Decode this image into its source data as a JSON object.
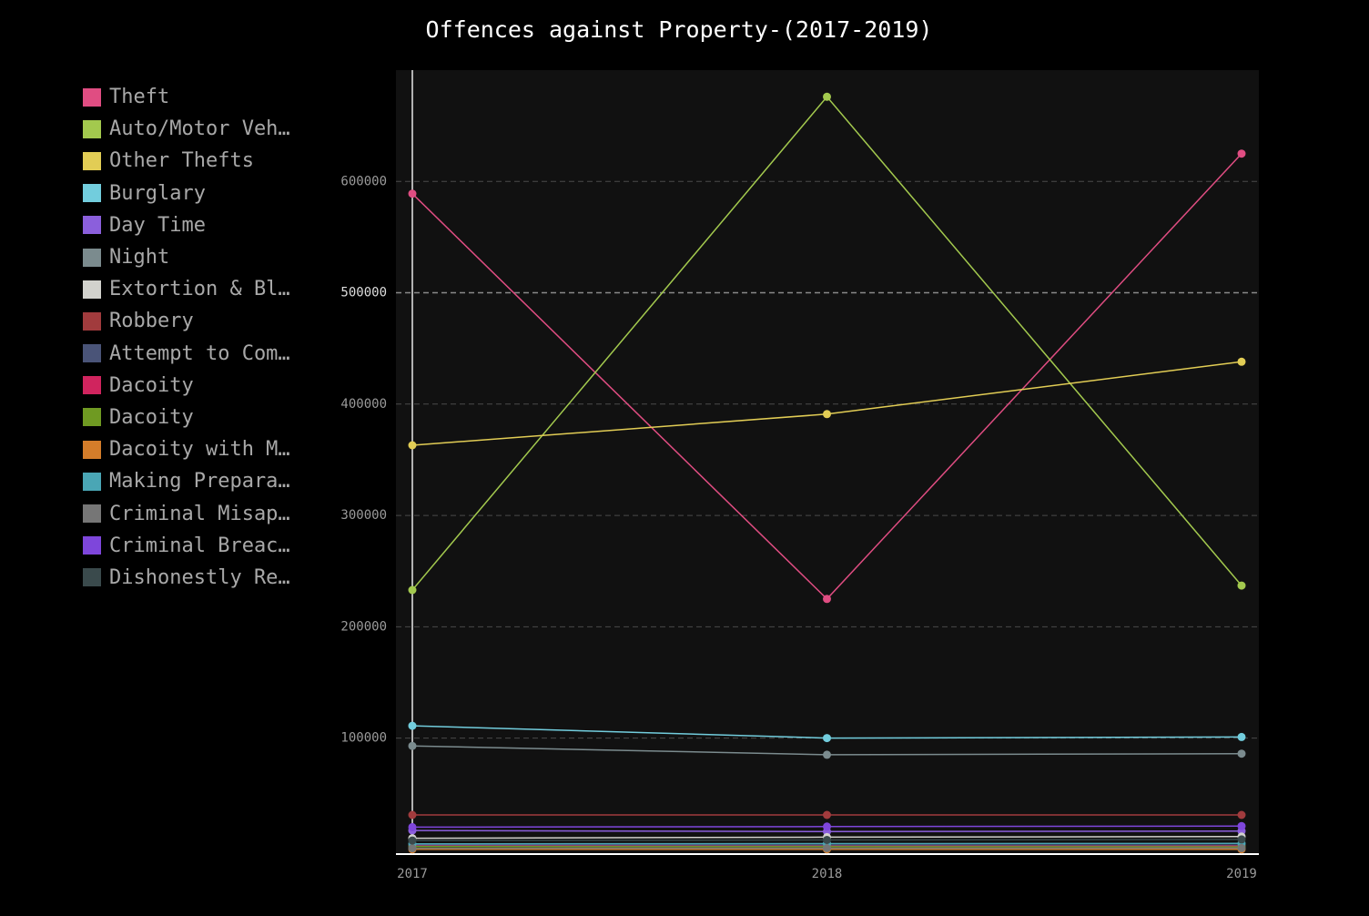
{
  "chart_data": {
    "type": "line",
    "title": "Offences against Property-(2017-2019)",
    "xlabel": "",
    "ylabel": "",
    "categories": [
      "2017",
      "2018",
      "2019"
    ],
    "y_ticks": [
      100000,
      200000,
      300000,
      400000,
      500000,
      600000
    ],
    "y_tick_labels": [
      "100000",
      "200000",
      "300000",
      "400000",
      "500000",
      "600000"
    ],
    "ylim": [
      -4200,
      700000
    ],
    "grid": true,
    "legend_position": "left",
    "series": [
      {
        "name": "Theft",
        "color": "#e04d82",
        "values": [
          589000,
          225000,
          625000
        ]
      },
      {
        "name": "Auto/Motor Vehicle Theft",
        "legend_label": "Auto/Motor Veh…",
        "color": "#a3c94e",
        "values": [
          233000,
          676000,
          237000
        ]
      },
      {
        "name": "Other Thefts",
        "color": "#e2cd55",
        "values": [
          363000,
          391000,
          438000
        ]
      },
      {
        "name": "Burglary",
        "color": "#72cddd",
        "values": [
          111000,
          100000,
          101000
        ]
      },
      {
        "name": "Day Time",
        "color": "#8b5fdc",
        "values": [
          17000,
          16000,
          16500
        ]
      },
      {
        "name": "Night",
        "color": "#7b8b8e",
        "values": [
          93000,
          85000,
          86000
        ]
      },
      {
        "name": "Extortion & Blackmail",
        "legend_label": "Extortion & Bl…",
        "color": "#d2d2cd",
        "values": [
          10000,
          11000,
          11500
        ]
      },
      {
        "name": "Robbery",
        "color": "#a13b3d",
        "values": [
          31000,
          31000,
          31000
        ]
      },
      {
        "name": "Attempt to Commit Robbery",
        "legend_label": "Attempt to Com…",
        "color": "#4a5478",
        "values": [
          4000,
          3800,
          3900
        ]
      },
      {
        "name": "Dacoity",
        "color": "#d0245e",
        "values": [
          3000,
          2800,
          2900
        ]
      },
      {
        "name": "Dacoity",
        "color": "#6f9a22",
        "values": [
          2500,
          2400,
          2300
        ]
      },
      {
        "name": "Dacoity with Murder",
        "legend_label": "Dacoity with M…",
        "color": "#d47d2a",
        "values": [
          150,
          140,
          140
        ]
      },
      {
        "name": "Making Preparation",
        "legend_label": "Making Prepara…",
        "color": "#4aa6b5",
        "values": [
          5000,
          5200,
          5400
        ]
      },
      {
        "name": "Criminal Misappropriation",
        "legend_label": "Criminal Misap…",
        "color": "#767676",
        "values": [
          1000,
          1100,
          1200
        ]
      },
      {
        "name": "Criminal Breach of Trust",
        "legend_label": "Criminal Breac…",
        "color": "#7e46db",
        "values": [
          20000,
          20500,
          21000
        ]
      },
      {
        "name": "Dishonestly Receiving Stolen Property",
        "legend_label": "Dishonestly Re…",
        "color": "#3a4a4c",
        "values": [
          8000,
          8500,
          9000
        ]
      }
    ]
  }
}
